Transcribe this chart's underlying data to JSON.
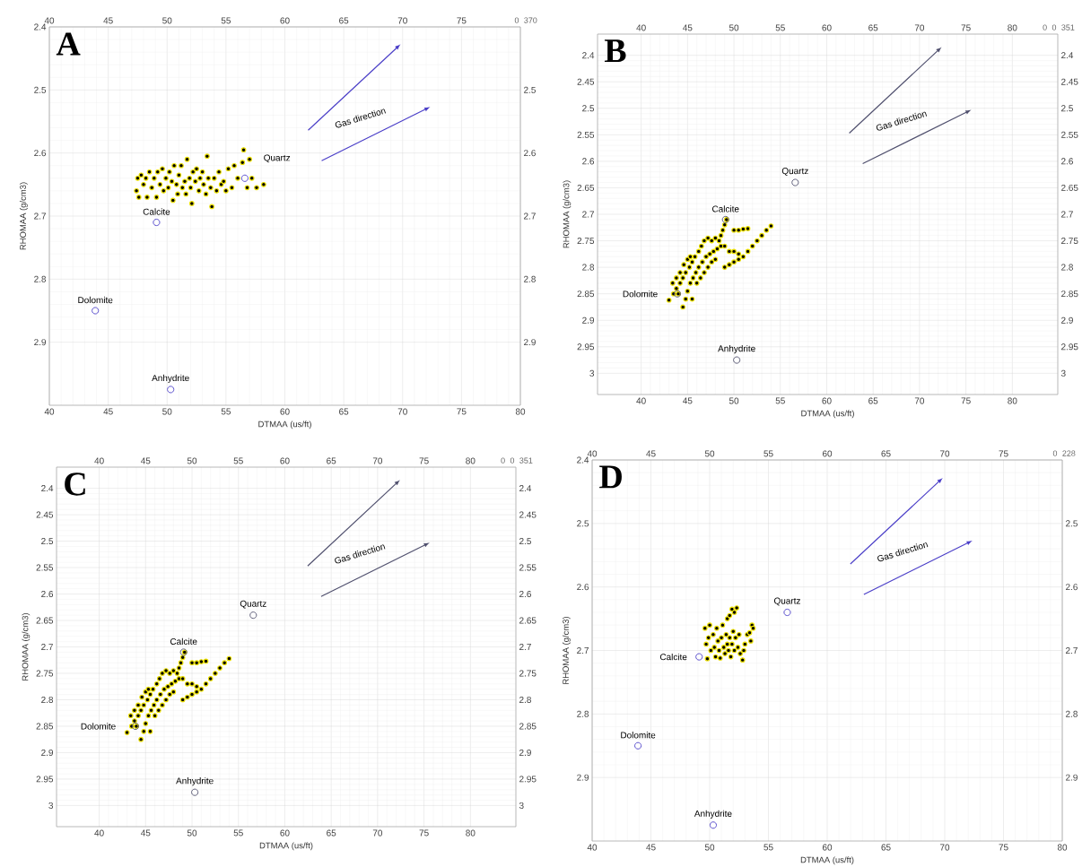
{
  "chart_data": [
    {
      "type": "scatter",
      "title": "A",
      "xlabel": "DTMAA (us/ft)",
      "ylabel": "RHOMAA (g/cm3)",
      "xlim": [
        40,
        80
      ],
      "ylim": [
        3.0,
        2.4
      ],
      "xticks": [
        40,
        45,
        50,
        55,
        60,
        65,
        70,
        75,
        80
      ],
      "yticks": [
        2.4,
        2.5,
        2.6,
        2.7,
        2.8,
        2.9
      ],
      "x2lim": [
        40,
        80
      ],
      "x2ticks": [
        40,
        45,
        50,
        55,
        60,
        65,
        70,
        75
      ],
      "y2lim": [
        3.0,
        2.4
      ],
      "y2ticks": [
        2.5,
        2.6,
        2.7,
        2.8,
        2.9
      ],
      "grid": true,
      "marker": "circle",
      "annotations": [
        "Gas direction",
        "370",
        "0"
      ],
      "series": [
        {
          "color": "#000000",
          "x": [
            47.4,
            47.5,
            47.8,
            47.6,
            48.0,
            48.2,
            48.3,
            48.5,
            48.7,
            48.9,
            49.1,
            49.2,
            49.4,
            49.6,
            49.7,
            49.9,
            50.1,
            50.2,
            50.4,
            50.5,
            50.6,
            50.8,
            50.9,
            51.0,
            51.2,
            51.3,
            51.5,
            51.6,
            51.7,
            51.9,
            52.0,
            52.1,
            52.2,
            52.4,
            52.5,
            52.7,
            52.8,
            53.0,
            53.1,
            53.3,
            53.4,
            53.5,
            53.7,
            53.8,
            54.0,
            54.2,
            54.4,
            54.6,
            54.8,
            55.0,
            55.2,
            55.5,
            55.7,
            56.0,
            56.4,
            56.5,
            56.8,
            57.0,
            57.2,
            57.6,
            58.2
          ],
          "values": [
            2.66,
            2.64,
            2.635,
            2.67,
            2.65,
            2.64,
            2.67,
            2.63,
            2.655,
            2.64,
            2.67,
            2.63,
            2.65,
            2.625,
            2.66,
            2.64,
            2.655,
            2.63,
            2.645,
            2.675,
            2.62,
            2.65,
            2.665,
            2.635,
            2.62,
            2.655,
            2.645,
            2.665,
            2.61,
            2.64,
            2.655,
            2.68,
            2.63,
            2.645,
            2.625,
            2.66,
            2.64,
            2.63,
            2.65,
            2.665,
            2.605,
            2.64,
            2.655,
            2.685,
            2.64,
            2.66,
            2.63,
            2.65,
            2.645,
            2.66,
            2.625,
            2.655,
            2.62,
            2.64,
            2.615,
            2.595,
            2.655,
            2.61,
            2.64,
            2.655,
            2.65
          ]
        },
        {
          "color": "#4b3fc8",
          "x": [
            56.6,
            49.1,
            43.9,
            50.3
          ],
          "values": [
            2.64,
            2.71,
            2.85,
            2.975
          ],
          "value_labels": [
            "Quartz",
            "Calcite",
            "Dolomite",
            "Anhydrite"
          ]
        }
      ]
    },
    {
      "type": "scatter",
      "title": "B",
      "xlabel": "DTMAA (us/ft)",
      "ylabel": "RHOMAA (g/cm3)",
      "xlim": [
        35.3,
        84.9
      ],
      "ylim": [
        3.04,
        2.36
      ],
      "xticks": [
        40,
        45,
        50,
        55,
        60,
        65,
        70,
        75,
        80
      ],
      "yticks": [
        2.4,
        2.45,
        2.5,
        2.55,
        2.6,
        2.65,
        2.7,
        2.75,
        2.8,
        2.85,
        2.9,
        2.95,
        3
      ],
      "x2lim": [
        35.3,
        84.9
      ],
      "x2ticks": [
        40,
        45,
        50,
        55,
        60,
        65,
        70,
        75,
        80
      ],
      "y2lim": [
        3.04,
        2.36
      ],
      "y2ticks": [
        2.4,
        2.45,
        2.5,
        2.55,
        2.6,
        2.65,
        2.7,
        2.75,
        2.8,
        2.85,
        2.9,
        2.95,
        3
      ],
      "grid": true,
      "marker": "circle",
      "annotations": [
        "Gas direction",
        "351",
        "0",
        "0"
      ],
      "series": [
        {
          "color": "#000000",
          "x": [
            49.2,
            49.0,
            48.8,
            48.6,
            48.4,
            50.0,
            50.5,
            51.0,
            51.5,
            54.0,
            53.5,
            53.0,
            52.5,
            52.0,
            51.5,
            51.0,
            50.5,
            50.0,
            49.5,
            49.0,
            43.0,
            43.5,
            43.8,
            44.2,
            44.5,
            44.8,
            45.2,
            45.5,
            45.8,
            46.2,
            46.5,
            46.8,
            47.2,
            47.6,
            48.0,
            43.4,
            43.8,
            44.2,
            44.6,
            45.0,
            45.3,
            44.5,
            44.8,
            45.0,
            45.3,
            45.6,
            45.9,
            46.2,
            46.6,
            47.0,
            47.4,
            47.8,
            48.2,
            48.6,
            49.0,
            49.5,
            50.0,
            50.5,
            46.0,
            46.4,
            46.8,
            47.2,
            47.6,
            48.0,
            44.0,
            45.5
          ],
          "values": [
            2.71,
            2.72,
            2.73,
            2.74,
            2.75,
            2.73,
            2.73,
            2.728,
            2.727,
            2.722,
            2.73,
            2.74,
            2.75,
            2.76,
            2.77,
            2.78,
            2.785,
            2.79,
            2.795,
            2.8,
            2.862,
            2.85,
            2.84,
            2.83,
            2.82,
            2.81,
            2.8,
            2.79,
            2.78,
            2.77,
            2.76,
            2.75,
            2.745,
            2.75,
            2.745,
            2.83,
            2.82,
            2.81,
            2.795,
            2.785,
            2.78,
            2.875,
            2.86,
            2.845,
            2.83,
            2.82,
            2.81,
            2.8,
            2.79,
            2.78,
            2.775,
            2.77,
            2.765,
            2.76,
            2.76,
            2.77,
            2.77,
            2.775,
            2.83,
            2.82,
            2.81,
            2.8,
            2.79,
            2.785,
            2.85,
            2.86
          ]
        },
        {
          "color": "#50506e",
          "x": [
            56.6,
            49.1,
            43.9,
            50.3
          ],
          "values": [
            2.64,
            2.71,
            2.85,
            2.975
          ],
          "value_labels": [
            "Quartz",
            "Calcite",
            "Dolomite",
            "Anhydrite"
          ]
        }
      ]
    },
    {
      "type": "scatter",
      "title": "C",
      "xlabel": "DTMAA (us/ft)",
      "ylabel": "RHOMAA (g/cm3)",
      "xlim": [
        35.4,
        84.9
      ],
      "ylim": [
        3.04,
        2.36
      ],
      "xticks": [
        40,
        45,
        50,
        55,
        60,
        65,
        70,
        75,
        80
      ],
      "yticks": [
        2.4,
        2.45,
        2.5,
        2.55,
        2.6,
        2.65,
        2.7,
        2.75,
        2.8,
        2.85,
        2.9,
        2.95,
        3
      ],
      "x2lim": [
        35.4,
        84.9
      ],
      "x2ticks": [
        40,
        45,
        50,
        55,
        60,
        65,
        70,
        75,
        80
      ],
      "y2lim": [
        3.04,
        2.36
      ],
      "y2ticks": [
        2.4,
        2.45,
        2.5,
        2.55,
        2.6,
        2.65,
        2.7,
        2.75,
        2.8,
        2.85,
        2.9,
        2.95,
        3
      ],
      "grid": true,
      "marker": "circle",
      "annotations": [
        "Gas direction",
        "351",
        "0",
        "0"
      ],
      "series": [
        {
          "color": "#000000",
          "x": [
            49.2,
            49.0,
            48.8,
            48.6,
            48.4,
            50.0,
            50.5,
            51.0,
            51.5,
            54.0,
            53.5,
            53.0,
            52.5,
            52.0,
            51.5,
            51.0,
            50.5,
            50.0,
            49.5,
            49.0,
            43.0,
            43.5,
            43.8,
            44.2,
            44.5,
            44.8,
            45.2,
            45.5,
            45.8,
            46.2,
            46.5,
            46.8,
            47.2,
            47.6,
            48.0,
            43.4,
            43.8,
            44.2,
            44.6,
            45.0,
            45.3,
            44.5,
            44.8,
            45.0,
            45.3,
            45.6,
            45.9,
            46.2,
            46.6,
            47.0,
            47.4,
            47.8,
            48.2,
            48.6,
            49.0,
            49.5,
            50.0,
            50.5,
            46.0,
            46.4,
            46.8,
            47.2,
            47.6,
            48.0,
            44.0,
            45.5
          ],
          "values": [
            2.71,
            2.72,
            2.73,
            2.74,
            2.75,
            2.73,
            2.73,
            2.728,
            2.727,
            2.722,
            2.73,
            2.74,
            2.75,
            2.76,
            2.77,
            2.78,
            2.785,
            2.79,
            2.795,
            2.8,
            2.862,
            2.85,
            2.84,
            2.83,
            2.82,
            2.81,
            2.8,
            2.79,
            2.78,
            2.77,
            2.76,
            2.75,
            2.745,
            2.75,
            2.745,
            2.83,
            2.82,
            2.81,
            2.795,
            2.785,
            2.78,
            2.875,
            2.86,
            2.845,
            2.83,
            2.82,
            2.81,
            2.8,
            2.79,
            2.78,
            2.775,
            2.77,
            2.765,
            2.76,
            2.76,
            2.77,
            2.77,
            2.775,
            2.83,
            2.82,
            2.81,
            2.8,
            2.79,
            2.785,
            2.85,
            2.86
          ]
        },
        {
          "color": "#50506e",
          "x": [
            56.6,
            49.1,
            43.9,
            50.3
          ],
          "values": [
            2.64,
            2.71,
            2.85,
            2.975
          ],
          "value_labels": [
            "Quartz",
            "Calcite",
            "Dolomite",
            "Anhydrite"
          ]
        }
      ]
    },
    {
      "type": "scatter",
      "title": "D",
      "xlabel": "DTMAA (us/ft)",
      "ylabel": "RHOMAA (g/cm3)",
      "xlim": [
        40,
        80
      ],
      "ylim": [
        3.0,
        2.4
      ],
      "xticks": [
        40,
        45,
        50,
        55,
        60,
        65,
        70,
        75,
        80
      ],
      "yticks": [
        2.4,
        2.5,
        2.6,
        2.7,
        2.8,
        2.9
      ],
      "x2lim": [
        40,
        80
      ],
      "x2ticks": [
        40,
        45,
        50,
        55,
        60,
        65,
        70,
        75
      ],
      "y2lim": [
        3.0,
        2.4
      ],
      "y2ticks": [
        2.5,
        2.6,
        2.7,
        2.8,
        2.9
      ],
      "grid": true,
      "marker": "circle",
      "annotations": [
        "Gas direction",
        "228",
        "0"
      ],
      "series": [
        {
          "color": "#000000",
          "x": [
            49.6,
            49.7,
            49.8,
            49.9,
            50.0,
            50.1,
            50.3,
            50.4,
            50.5,
            50.6,
            50.7,
            50.8,
            50.9,
            51.0,
            51.1,
            51.2,
            51.3,
            51.4,
            51.5,
            51.5,
            51.6,
            51.7,
            51.7,
            51.8,
            51.9,
            51.9,
            52.0,
            52.1,
            52.1,
            52.2,
            52.3,
            52.4,
            52.5,
            52.6,
            52.8,
            52.9,
            53.0,
            53.2,
            53.4,
            53.5,
            53.6,
            53.7
          ],
          "values": [
            2.665,
            2.69,
            2.713,
            2.68,
            2.66,
            2.7,
            2.675,
            2.695,
            2.71,
            2.665,
            2.685,
            2.7,
            2.712,
            2.68,
            2.66,
            2.695,
            2.705,
            2.675,
            2.69,
            2.65,
            2.7,
            2.68,
            2.645,
            2.71,
            2.635,
            2.69,
            2.67,
            2.7,
            2.64,
            2.68,
            2.633,
            2.695,
            2.675,
            2.705,
            2.715,
            2.7,
            2.69,
            2.675,
            2.672,
            2.685,
            2.66,
            2.665
          ]
        },
        {
          "color": "#4b3fc8",
          "x": [
            56.6,
            49.1,
            43.9,
            50.3
          ],
          "values": [
            2.64,
            2.71,
            2.85,
            2.975
          ],
          "value_labels": [
            "Quartz",
            "Calcite",
            "Dolomite",
            "Anhydrite"
          ]
        }
      ]
    }
  ]
}
